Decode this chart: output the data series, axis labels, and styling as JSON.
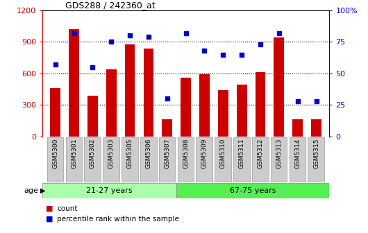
{
  "title": "GDS288 / 242360_at",
  "samples": [
    "GSM5300",
    "GSM5301",
    "GSM5302",
    "GSM5303",
    "GSM5305",
    "GSM5306",
    "GSM5307",
    "GSM5308",
    "GSM5309",
    "GSM5310",
    "GSM5311",
    "GSM5312",
    "GSM5313",
    "GSM5314",
    "GSM5315"
  ],
  "counts": [
    460,
    1020,
    390,
    640,
    880,
    840,
    160,
    560,
    590,
    440,
    490,
    610,
    940,
    160,
    160
  ],
  "percentiles": [
    57,
    82,
    55,
    75,
    80,
    79,
    30,
    82,
    68,
    65,
    65,
    73,
    82,
    28,
    28
  ],
  "bar_color": "#cc0000",
  "dot_color": "#0000cc",
  "group1_label": "21-27 years",
  "group2_label": "67-75 years",
  "group1_count": 7,
  "group2_count": 8,
  "group1_color": "#aaffaa",
  "group2_color": "#55ee55",
  "left_ylim": [
    0,
    1200
  ],
  "right_ylim": [
    0,
    100
  ],
  "left_yticks": [
    0,
    300,
    600,
    900,
    1200
  ],
  "right_yticks": [
    0,
    25,
    50,
    75,
    100
  ],
  "bg_color": "#ffffff",
  "tick_bg_color": "#cccccc",
  "age_label": "age",
  "legend_count_label": "count",
  "legend_pct_label": "percentile rank within the sample",
  "title_color": "#000000",
  "left_axis_color": "#cc0000",
  "right_axis_color": "#0000cc",
  "right_tick_labels": [
    "0",
    "25",
    "50",
    "75",
    "100%"
  ]
}
